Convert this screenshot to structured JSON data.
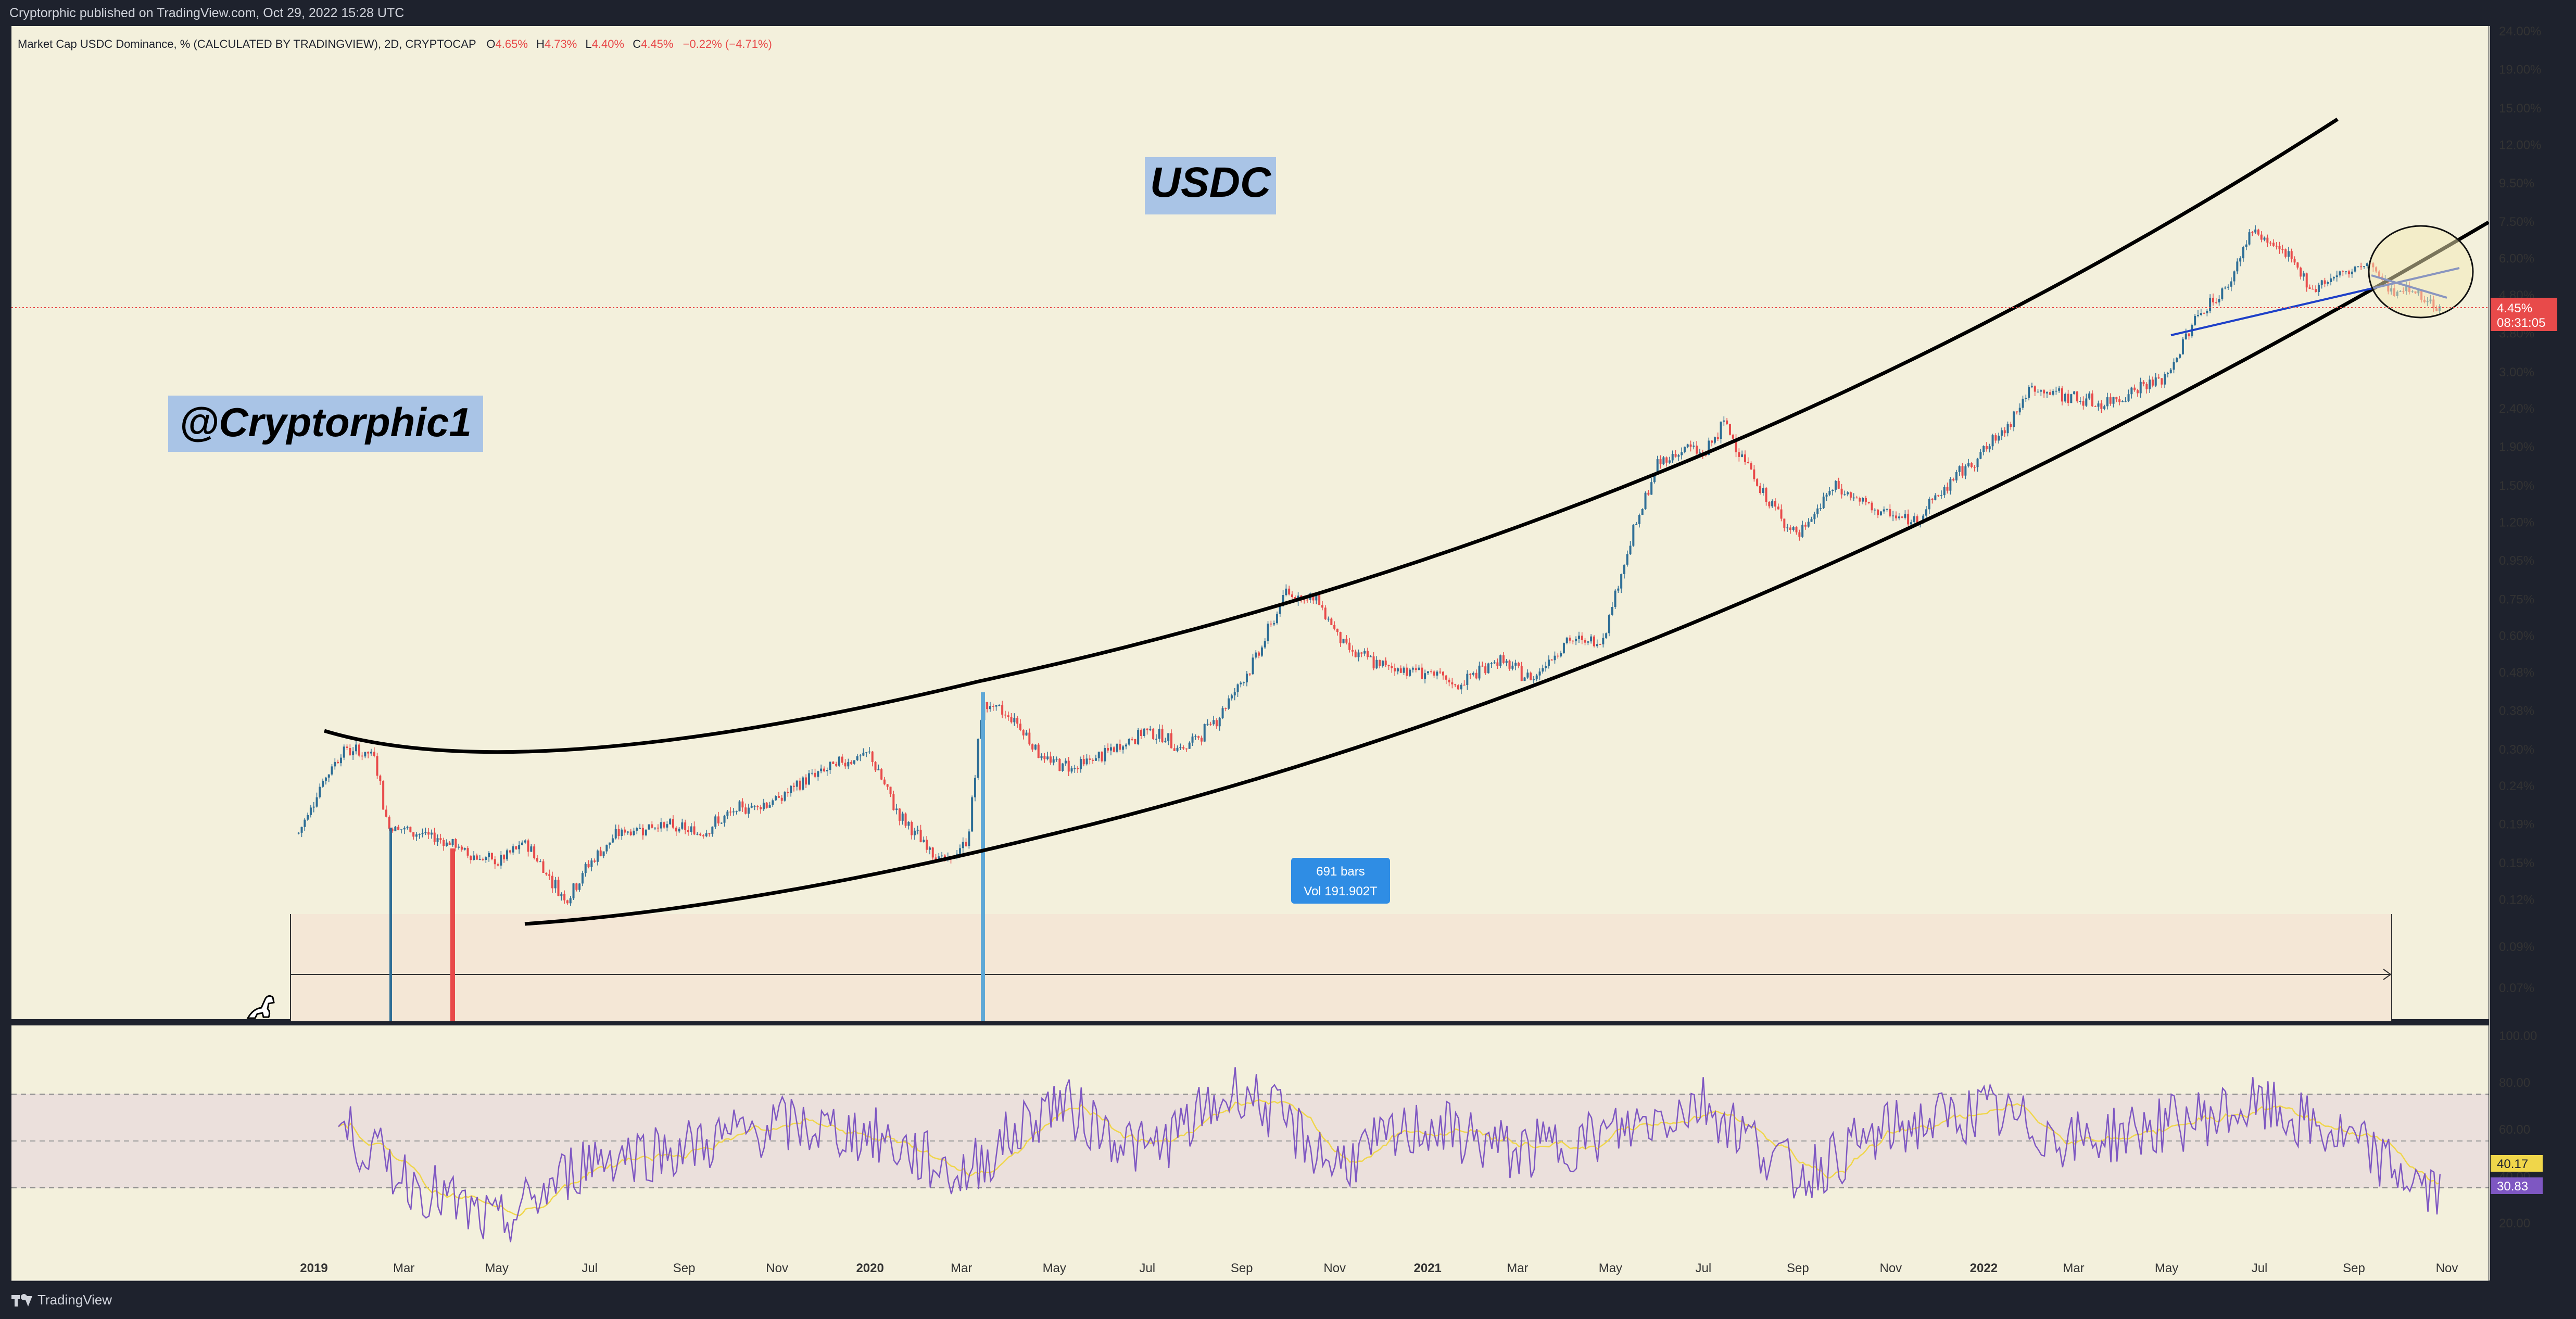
{
  "header": {
    "published_text": "Cryptorphic published on TradingView.com, Oct 29, 2022 15:28 UTC"
  },
  "legend": {
    "symbol_text": "Market Cap USDC Dominance, % (CALCULATED BY TRADINGVIEW), 2D, CRYPTOCAP",
    "o_label": "O",
    "o_value": "4.65%",
    "h_label": "H",
    "h_value": "4.73%",
    "l_label": "L",
    "l_value": "4.40%",
    "c_label": "C",
    "c_value": "4.45%",
    "change": "−0.22% (−4.71%)"
  },
  "annotations": {
    "title_box": "USDC",
    "author_box": "@Cryptorphic1",
    "range_label_1": "691 bars",
    "range_label_2": "Vol 191.902T"
  },
  "price_badge": {
    "value": "4.45%",
    "countdown": "08:31:05"
  },
  "rsi_badges": {
    "ma": "40.17",
    "rsi": "30.83"
  },
  "footer": {
    "brand": "TradingView"
  },
  "colors": {
    "background": "#f3f0dc",
    "frame": "#1e222d",
    "up": "#2e6e96",
    "down": "#e84a4a",
    "rsi": "#7e57c2",
    "rsi_ma": "#f0d64a",
    "trend_blue": "#1e40c8"
  },
  "chart_data": [
    {
      "type": "line",
      "subtype": "candlestick",
      "title": "Market Cap USDC Dominance, % (CALCULATED BY TRADINGVIEW), 2D, CRYPTOCAP",
      "scale": "log",
      "x_tick_labels": [
        "2019",
        "Mar",
        "May",
        "Jul",
        "Sep",
        "Nov",
        "2020",
        "Mar",
        "May",
        "Jul",
        "Sep",
        "Nov",
        "2021",
        "Mar",
        "May",
        "Jul",
        "Sep",
        "Nov",
        "2022",
        "Mar",
        "May",
        "Jul",
        "Sep",
        "Nov"
      ],
      "y_tick_labels": [
        "24.00%",
        "19.00%",
        "15.00%",
        "12.00%",
        "9.50%",
        "7.50%",
        "6.00%",
        "4.80%",
        "3.80%",
        "3.00%",
        "2.40%",
        "1.90%",
        "1.50%",
        "1.20%",
        "0.95%",
        "0.75%",
        "0.60%",
        "0.48%",
        "0.38%",
        "0.30%",
        "0.24%",
        "0.19%",
        "0.15%",
        "0.12%",
        "0.09%",
        "0.07%"
      ],
      "ylim": [
        0.06,
        25
      ],
      "series": [
        {
          "x": [
            "2018-12-22",
            "2019-01-05",
            "2019-01-20",
            "2019-02-10",
            "2019-02-18",
            "2019-03-10",
            "2019-04-01",
            "2019-04-10",
            "2019-05-01",
            "2019-05-20",
            "2019-06-15",
            "2019-07-01",
            "2019-07-20",
            "2019-08-15",
            "2019-09-10",
            "2019-10-10",
            "2019-11-01",
            "2019-11-20",
            "2019-12-15",
            "2020-01-01",
            "2020-01-20",
            "2020-02-05",
            "2020-02-20",
            "2020-03-05",
            "2020-03-15",
            "2020-04-05",
            "2020-04-25",
            "2020-05-15",
            "2020-06-10",
            "2020-07-01",
            "2020-07-25",
            "2020-08-15",
            "2020-09-10",
            "2020-09-30",
            "2020-10-20",
            "2020-11-10",
            "2020-12-01",
            "2021-01-01",
            "2021-01-20",
            "2021-02-15",
            "2021-03-10",
            "2021-04-01",
            "2021-04-25",
            "2021-05-15",
            "2021-06-01",
            "2021-06-20",
            "2021-07-01",
            "2021-07-15",
            "2021-08-10",
            "2021-09-01",
            "2021-09-25",
            "2021-10-20",
            "2021-11-15",
            "2021-12-15",
            "2022-01-10",
            "2022-02-01",
            "2022-02-25",
            "2022-03-20",
            "2022-04-10",
            "2022-05-01",
            "2022-05-20",
            "2022-06-10",
            "2022-06-25",
            "2022-07-15",
            "2022-08-05",
            "2022-08-25",
            "2022-09-10",
            "2022-09-25",
            "2022-10-10",
            "2022-10-28"
          ],
          "values": [
            0.18,
            0.24,
            0.3,
            0.29,
            0.19,
            0.18,
            0.17,
            0.16,
            0.15,
            0.17,
            0.12,
            0.15,
            0.18,
            0.19,
            0.18,
            0.21,
            0.22,
            0.25,
            0.28,
            0.29,
            0.2,
            0.17,
            0.15,
            0.17,
            0.4,
            0.36,
            0.28,
            0.27,
            0.3,
            0.34,
            0.3,
            0.36,
            0.52,
            0.78,
            0.75,
            0.55,
            0.5,
            0.48,
            0.44,
            0.52,
            0.46,
            0.58,
            0.58,
            1.1,
            1.7,
            1.9,
            1.8,
            2.2,
            1.4,
            1.1,
            1.5,
            1.3,
            1.2,
            1.6,
            2.0,
            2.7,
            2.6,
            2.45,
            2.7,
            2.9,
            4.2,
            5.0,
            7.1,
            6.3,
            5.0,
            5.5,
            5.8,
            5.0,
            4.9,
            4.45
          ]
        }
      ]
    },
    {
      "type": "line",
      "title": "RSI",
      "y_tick_labels": [
        "100.00",
        "80.00",
        "60.00",
        "40.00",
        "20.00"
      ],
      "ylim": [
        0,
        100
      ],
      "series": [
        {
          "name": "",
          "x": [
            "2019-01",
            "2019-03",
            "2019-05",
            "2019-07",
            "2019-09",
            "2019-11",
            "2020-01",
            "2020-03",
            "2020-05",
            "2020-07",
            "2020-09",
            "2020-11",
            "2021-01",
            "2021-03",
            "2021-05",
            "2021-07",
            "2021-09",
            "2021-11",
            "2022-01",
            "2022-03",
            "2022-05",
            "2022-07",
            "2022-09",
            "2022-10-28"
          ],
          "values": [
            70,
            40,
            18,
            48,
            52,
            62,
            58,
            40,
            72,
            50,
            78,
            45,
            62,
            50,
            58,
            72,
            40,
            60,
            68,
            55,
            62,
            70,
            54,
            30.83
          ]
        }
      ]
    }
  ]
}
